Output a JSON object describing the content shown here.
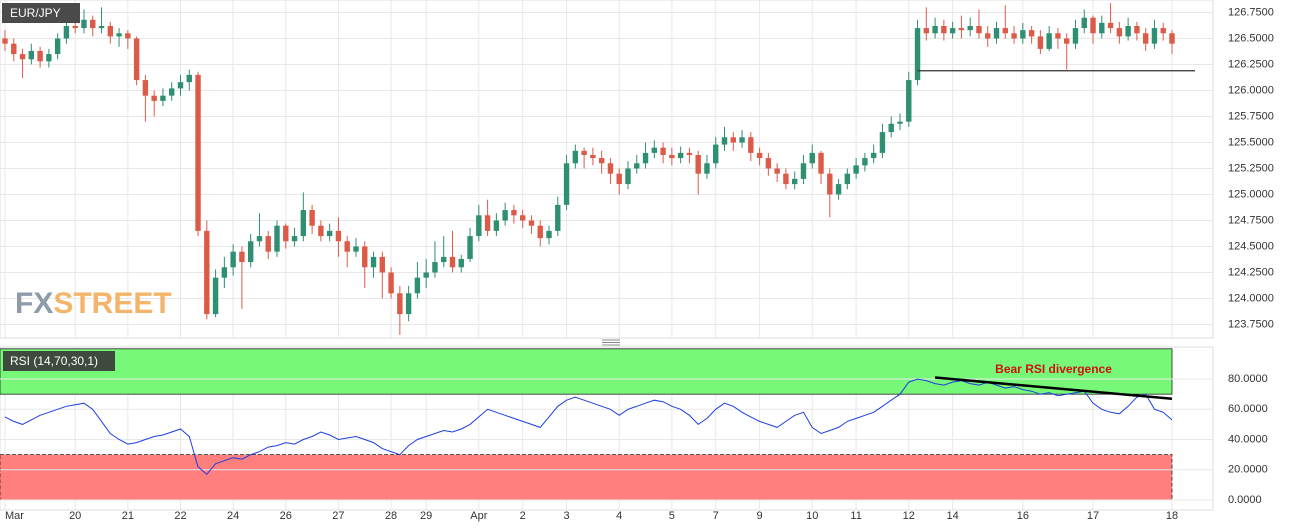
{
  "chart_data": [
    {
      "type": "candlestick",
      "title": "EUR/JPY",
      "watermark": [
        "FX",
        "STREET"
      ],
      "categories": [
        "Mar",
        null,
        null,
        null,
        null,
        null,
        null,
        null,
        "20",
        null,
        null,
        null,
        null,
        null,
        "21",
        null,
        null,
        null,
        null,
        null,
        "22",
        null,
        null,
        null,
        null,
        null,
        "24",
        null,
        null,
        null,
        null,
        null,
        "26",
        null,
        null,
        null,
        null,
        null,
        "27",
        null,
        null,
        null,
        null,
        null,
        "28",
        null,
        null,
        null,
        "29",
        null,
        null,
        null,
        null,
        null,
        "Apr",
        null,
        null,
        null,
        null,
        "2",
        null,
        null,
        null,
        null,
        "3",
        null,
        null,
        null,
        null,
        null,
        "4",
        null,
        null,
        null,
        null,
        null,
        "5",
        null,
        null,
        null,
        null,
        "7",
        null,
        null,
        null,
        null,
        "9",
        null,
        null,
        null,
        null,
        null,
        "10",
        null,
        null,
        null,
        null,
        "11",
        null,
        null,
        null,
        null,
        null,
        "12",
        null,
        null,
        null,
        null,
        "14",
        null,
        null,
        null,
        null,
        null,
        null,
        null,
        "16",
        null,
        null,
        null,
        null,
        null,
        null,
        null,
        "17",
        null,
        null,
        null,
        null,
        null,
        null,
        null,
        null,
        "18"
      ],
      "open": [
        126.5,
        126.45,
        126.35,
        126.3,
        126.38,
        126.28,
        126.35,
        126.5,
        126.62,
        126.6,
        126.68,
        126.6,
        126.62,
        126.52,
        126.55,
        126.5,
        126.1,
        125.95,
        125.9,
        125.95,
        126.02,
        126.08,
        126.15,
        124.65,
        123.85,
        124.2,
        124.3,
        124.45,
        124.35,
        124.55,
        124.6,
        124.45,
        124.7,
        124.55,
        124.6,
        124.85,
        124.7,
        124.6,
        124.65,
        124.55,
        124.45,
        124.5,
        124.3,
        124.4,
        124.25,
        124.05,
        123.85,
        124.05,
        124.2,
        124.25,
        124.35,
        124.4,
        124.3,
        124.38,
        124.6,
        124.8,
        124.65,
        124.75,
        124.85,
        124.8,
        124.75,
        124.7,
        124.58,
        124.65,
        124.9,
        125.3,
        125.42,
        125.38,
        125.35,
        125.3,
        125.2,
        125.1,
        125.25,
        125.3,
        125.4,
        125.45,
        125.38,
        125.35,
        125.4,
        125.38,
        125.2,
        125.3,
        125.48,
        125.55,
        125.5,
        125.55,
        125.4,
        125.35,
        125.25,
        125.2,
        125.1,
        125.15,
        125.3,
        125.4,
        125.2,
        125.0,
        125.1,
        125.2,
        125.28,
        125.35,
        125.4,
        125.6,
        125.68,
        125.7,
        126.1,
        126.6,
        126.55,
        126.62,
        126.55,
        126.6,
        126.58,
        126.62,
        126.55,
        126.5,
        126.6,
        126.55,
        126.5,
        126.58,
        126.52,
        126.4,
        126.55,
        126.5,
        126.45,
        126.6,
        126.7,
        126.55,
        126.65,
        126.6,
        126.52,
        126.62,
        126.55,
        126.45,
        126.6,
        126.55
      ],
      "high": [
        126.58,
        126.5,
        126.4,
        126.45,
        126.42,
        126.4,
        126.55,
        126.68,
        126.75,
        126.78,
        126.72,
        126.8,
        126.66,
        126.6,
        126.58,
        126.52,
        126.15,
        126.0,
        126.02,
        126.08,
        126.15,
        126.2,
        126.18,
        124.75,
        124.28,
        124.4,
        124.52,
        124.5,
        124.62,
        124.82,
        124.65,
        124.75,
        124.72,
        124.68,
        125.02,
        124.9,
        124.75,
        124.72,
        124.78,
        124.6,
        124.58,
        124.55,
        124.45,
        124.45,
        124.3,
        124.12,
        124.12,
        124.35,
        124.38,
        124.55,
        124.6,
        124.65,
        124.42,
        124.68,
        124.9,
        124.95,
        124.82,
        124.92,
        124.9,
        124.85,
        124.8,
        124.75,
        124.7,
        124.98,
        125.38,
        125.48,
        125.45,
        125.45,
        125.42,
        125.35,
        125.25,
        125.32,
        125.38,
        125.5,
        125.52,
        125.5,
        125.45,
        125.46,
        125.45,
        125.42,
        125.38,
        125.55,
        125.65,
        125.6,
        125.62,
        125.6,
        125.45,
        125.4,
        125.3,
        125.25,
        125.22,
        125.38,
        125.48,
        125.42,
        125.25,
        125.15,
        125.25,
        125.35,
        125.4,
        125.48,
        125.68,
        125.75,
        125.78,
        126.18,
        126.68,
        126.8,
        126.7,
        126.68,
        126.66,
        126.72,
        126.7,
        126.78,
        126.62,
        126.66,
        126.82,
        126.62,
        126.65,
        126.62,
        126.58,
        126.62,
        126.6,
        126.55,
        126.68,
        126.78,
        126.72,
        126.72,
        126.84,
        126.66,
        126.7,
        126.66,
        126.6,
        126.68,
        126.65,
        126.58
      ],
      "low": [
        126.38,
        126.28,
        126.12,
        126.25,
        126.22,
        126.22,
        126.3,
        126.45,
        126.55,
        126.55,
        126.52,
        126.55,
        126.45,
        126.42,
        126.4,
        126.05,
        125.7,
        125.75,
        125.85,
        125.9,
        125.95,
        126.0,
        124.6,
        123.8,
        123.82,
        124.1,
        124.22,
        123.9,
        124.3,
        124.5,
        124.38,
        124.4,
        124.48,
        124.5,
        124.55,
        124.62,
        124.55,
        124.55,
        124.4,
        124.3,
        124.4,
        124.1,
        124.2,
        124.0,
        124.0,
        123.65,
        123.78,
        124.0,
        124.1,
        124.2,
        124.3,
        124.25,
        124.25,
        124.35,
        124.55,
        124.6,
        124.6,
        124.7,
        124.72,
        124.68,
        124.62,
        124.5,
        124.52,
        124.6,
        124.85,
        125.25,
        125.25,
        125.28,
        125.2,
        125.1,
        125.0,
        125.05,
        125.2,
        125.25,
        125.35,
        125.3,
        125.28,
        125.3,
        125.3,
        125.0,
        125.15,
        125.25,
        125.42,
        125.42,
        125.45,
        125.32,
        125.28,
        125.18,
        125.12,
        125.05,
        125.05,
        125.1,
        125.25,
        125.1,
        124.78,
        124.95,
        125.05,
        125.15,
        125.22,
        125.3,
        125.35,
        125.55,
        125.62,
        125.65,
        126.05,
        126.48,
        126.5,
        126.48,
        126.5,
        126.5,
        126.52,
        126.5,
        126.42,
        126.45,
        126.5,
        126.45,
        126.45,
        126.45,
        126.35,
        126.38,
        126.4,
        126.2,
        126.4,
        126.55,
        126.45,
        126.5,
        126.55,
        126.45,
        126.48,
        126.48,
        126.38,
        126.4,
        126.48,
        126.35
      ],
      "close": [
        126.45,
        126.35,
        126.3,
        126.38,
        126.28,
        126.35,
        126.5,
        126.62,
        126.6,
        126.68,
        126.6,
        126.62,
        126.52,
        126.55,
        126.5,
        126.1,
        125.95,
        125.9,
        125.95,
        126.02,
        126.08,
        126.15,
        124.65,
        123.85,
        124.2,
        124.3,
        124.45,
        124.35,
        124.55,
        124.6,
        124.45,
        124.7,
        124.55,
        124.6,
        124.85,
        124.7,
        124.6,
        124.65,
        124.55,
        124.45,
        124.5,
        124.3,
        124.4,
        124.25,
        124.05,
        123.85,
        124.05,
        124.2,
        124.25,
        124.35,
        124.4,
        124.3,
        124.38,
        124.6,
        124.8,
        124.65,
        124.75,
        124.85,
        124.8,
        124.75,
        124.7,
        124.58,
        124.65,
        124.9,
        125.3,
        125.42,
        125.38,
        125.35,
        125.3,
        125.2,
        125.1,
        125.25,
        125.3,
        125.4,
        125.45,
        125.38,
        125.35,
        125.4,
        125.38,
        125.2,
        125.3,
        125.48,
        125.55,
        125.5,
        125.55,
        125.4,
        125.35,
        125.25,
        125.2,
        125.1,
        125.15,
        125.3,
        125.4,
        125.2,
        125.0,
        125.1,
        125.2,
        125.28,
        125.35,
        125.4,
        125.6,
        125.68,
        125.7,
        126.1,
        126.6,
        126.55,
        126.62,
        126.55,
        126.6,
        126.58,
        126.62,
        126.55,
        126.5,
        126.6,
        126.55,
        126.5,
        126.58,
        126.52,
        126.4,
        126.55,
        126.5,
        126.45,
        126.6,
        126.7,
        126.55,
        126.65,
        126.6,
        126.52,
        126.62,
        126.55,
        126.45,
        126.6,
        126.55,
        126.45
      ],
      "up_color": "#2f8f72",
      "down_color": "#dc5a48",
      "ylim": [
        123.62,
        126.87
      ],
      "yticks": [
        {
          "value": 123.75,
          "label": "123.7500"
        },
        {
          "value": 124,
          "label": "124.0000"
        },
        {
          "value": 124.25,
          "label": "124.2500"
        },
        {
          "value": 124.5,
          "label": "124.5000"
        },
        {
          "value": 124.75,
          "label": "124.7500"
        },
        {
          "value": 125,
          "label": "125.0000"
        },
        {
          "value": 125.25,
          "label": "125.2500"
        },
        {
          "value": 125.5,
          "label": "125.5000"
        },
        {
          "value": 125.75,
          "label": "125.7500"
        },
        {
          "value": 126,
          "label": "126.0000"
        },
        {
          "value": 126.25,
          "label": "126.2500"
        },
        {
          "value": 126.5,
          "label": "126.5000"
        },
        {
          "value": 126.75,
          "label": "126.7500"
        }
      ],
      "grid": true,
      "hline": 126.19
    },
    {
      "type": "line",
      "series": [
        {
          "name": "RSI (14,70,30,1)",
          "color": "#1c3fe0",
          "values": [
            55,
            52,
            50,
            53,
            56,
            58,
            60,
            62,
            63,
            64,
            60,
            52,
            44,
            40,
            37,
            38,
            40,
            42,
            43,
            45,
            47,
            42,
            22,
            17,
            24,
            26,
            28,
            27,
            30,
            32,
            35,
            36,
            38,
            37,
            40,
            42,
            45,
            43,
            40,
            41,
            42,
            40,
            38,
            34,
            32,
            30,
            36,
            40,
            42,
            44,
            46,
            45,
            47,
            50,
            55,
            60,
            58,
            56,
            54,
            52,
            50,
            48,
            55,
            62,
            66,
            68,
            66,
            64,
            62,
            60,
            56,
            60,
            62,
            64,
            66,
            65,
            62,
            60,
            56,
            50,
            54,
            60,
            64,
            62,
            58,
            55,
            52,
            50,
            48,
            52,
            56,
            58,
            48,
            44,
            46,
            48,
            52,
            54,
            56,
            58,
            62,
            66,
            70,
            78,
            80,
            79,
            77,
            76,
            78,
            79,
            77,
            76,
            78,
            76,
            74,
            75,
            73,
            72,
            70,
            71,
            69,
            70,
            71,
            72,
            64,
            60,
            58,
            57,
            62,
            68,
            70,
            60,
            58,
            53
          ]
        }
      ],
      "bands": [
        {
          "from": 70,
          "to": 100,
          "color": "#78f878"
        },
        {
          "from": 0,
          "to": 30,
          "color": "#ff7e7e"
        }
      ],
      "ylim": [
        -6.6,
        101.2
      ],
      "yticks": [
        {
          "value": 0,
          "label": "0.0000"
        },
        {
          "value": 20,
          "label": "20.0000"
        },
        {
          "value": 40,
          "label": "40.0000"
        },
        {
          "value": 60,
          "label": "60.0000"
        },
        {
          "value": 80,
          "label": "80.0000"
        }
      ],
      "grid": true,
      "annotation": {
        "text": "Bear RSI divergence",
        "color": "#d01010"
      },
      "trend_line": [
        81,
        67
      ]
    }
  ]
}
